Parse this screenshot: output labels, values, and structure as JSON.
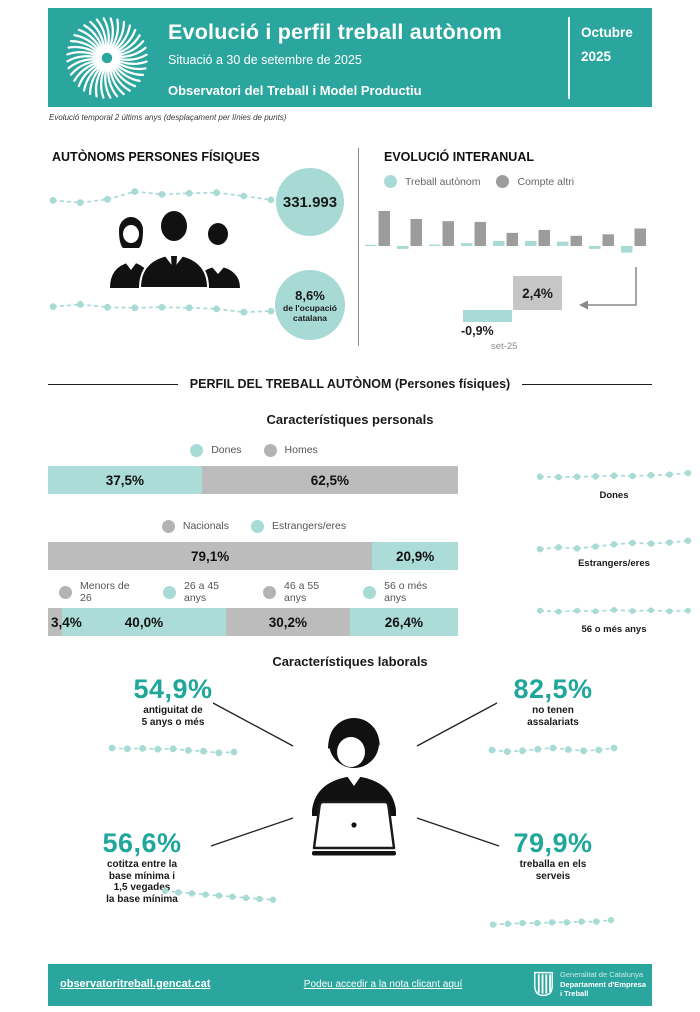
{
  "header": {
    "title": "Evolució i perfil treball autònom",
    "subtitle": "Situació a 30 de setembre de 2025",
    "org": "Observatori del Treball i Model Productiu",
    "period_month": "Octubre",
    "period_year": "2025"
  },
  "note": "Evolució temporal 2 últims anys (desplaçament per línies de punts)",
  "colors": {
    "brand_teal": "#2BA69E",
    "light_teal": "#A9DBD6",
    "stat_teal": "#1FA79B",
    "bar_gray": "#BCBCBC",
    "chart_gray": "#9C9C9C"
  },
  "autonoms": {
    "heading": "AUTÒNOMS PERSONES FÍSIQUES",
    "total": "331.993",
    "share_value": "8,6%",
    "share_line1": "de l'ocupació",
    "share_line2": "catalana"
  },
  "evolucio": {
    "heading": "EVOLUCIÓ INTERANUAL",
    "legend": [
      {
        "label": "Treball autònom",
        "color": "#A9DBD6"
      },
      {
        "label": "Compte altri",
        "color": "#9C9C9C"
      }
    ],
    "callout": {
      "gray_value": "2,4%",
      "teal_value": "-0,9%",
      "period": "set-25"
    }
  },
  "perfil": {
    "section_title": "PERFIL DEL TREBALL AUTÒNOM (Persones físiques)",
    "personals_title": "Característiques personals",
    "groups": [
      {
        "legend": [
          {
            "label": "Dones",
            "color": "#A9DBD6"
          },
          {
            "label": "Homes",
            "color": "#B3B3B3"
          }
        ],
        "segments": [
          {
            "label": "37,5%",
            "value": 37.5,
            "color": "#ABDCD8"
          },
          {
            "label": "62,5%",
            "value": 62.5,
            "color": "#BCBCBC"
          }
        ]
      },
      {
        "legend": [
          {
            "label": "Nacionals",
            "color": "#B3B3B3"
          },
          {
            "label": "Estrangers/eres",
            "color": "#A9DBD6"
          }
        ],
        "segments": [
          {
            "label": "79,1%",
            "value": 79.1,
            "color": "#BCBCBC"
          },
          {
            "label": "20,9%",
            "value": 20.9,
            "color": "#ABDCD8"
          }
        ]
      },
      {
        "legend": [
          {
            "label": "Menors de 26",
            "color": "#B3B3B3"
          },
          {
            "label": "26 a 45 anys",
            "color": "#A9DBD6"
          },
          {
            "label": "46 a 55 anys",
            "color": "#B3B3B3"
          },
          {
            "label": "56 o més anys",
            "color": "#A9DBD6"
          }
        ],
        "segments": [
          {
            "label": "3,4%",
            "value": 3.4,
            "color": "#BCBCBC"
          },
          {
            "label": "40,0%",
            "value": 40.0,
            "color": "#ABDCD8"
          },
          {
            "label": "30,2%",
            "value": 30.2,
            "color": "#BCBCBC"
          },
          {
            "label": "26,4%",
            "value": 26.4,
            "color": "#ABDCD8"
          }
        ]
      }
    ],
    "trends": [
      {
        "label": "Dones"
      },
      {
        "label": "Estrangers/eres"
      },
      {
        "label": "56 o més anys"
      }
    ],
    "laborals_title": "Característiques laborals",
    "stats": [
      {
        "value": "54,9%",
        "lines": [
          "antiguitat de",
          "5 anys o més"
        ]
      },
      {
        "value": "82,5%",
        "lines": [
          "no tenen",
          "assalariats"
        ]
      },
      {
        "value": "56,6%",
        "lines": [
          "cotitza entre la",
          "base mínima i",
          "1,5 vegades",
          "la base mínima"
        ]
      },
      {
        "value": "79,9%",
        "lines": [
          "treballa en els",
          "serveis"
        ]
      }
    ]
  },
  "footer": {
    "site": "observatoritreball.gencat.cat",
    "link": "Podeu accedir a la nota clicant aquí",
    "logo": [
      "Generalitat de Catalunya",
      "Departament d'Empresa",
      "i Treball"
    ]
  },
  "chart_data": [
    {
      "id": "evolucio_interanual",
      "type": "bar",
      "title": "EVOLUCIÓ INTERANUAL",
      "unit": "% interannual variation",
      "x_labels": [
        "",
        "",
        "",
        "",
        "",
        "",
        "",
        "",
        "set-25"
      ],
      "series": [
        {
          "name": "Treball autònom",
          "color": "#A9DBD6",
          "values": [
            0.1,
            -0.4,
            0.2,
            0.4,
            0.7,
            0.7,
            0.6,
            -0.4,
            -0.9
          ]
        },
        {
          "name": "Compte altri",
          "color": "#9C9C9C",
          "values": [
            4.8,
            3.7,
            3.4,
            3.3,
            1.8,
            2.2,
            1.4,
            1.6,
            2.4
          ]
        }
      ],
      "highlight": {
        "period": "set-25",
        "treball_autonom": -0.9,
        "compte_altri": 2.4
      },
      "legend_position": "top",
      "grid": false
    },
    {
      "id": "sexe",
      "type": "bar",
      "subtype": "stacked-horizontal",
      "categories": [
        "Dones",
        "Homes"
      ],
      "values": [
        37.5,
        62.5
      ],
      "unit": "%"
    },
    {
      "id": "nacionalitat",
      "type": "bar",
      "subtype": "stacked-horizontal",
      "categories": [
        "Nacionals",
        "Estrangers/eres"
      ],
      "values": [
        79.1,
        20.9
      ],
      "unit": "%"
    },
    {
      "id": "edat",
      "type": "bar",
      "subtype": "stacked-horizontal",
      "categories": [
        "Menors de 26",
        "26 a 45 anys",
        "46 a 55 anys",
        "56 o més anys"
      ],
      "values": [
        3.4,
        40.0,
        30.2,
        26.4
      ],
      "unit": "%"
    },
    {
      "id": "trend_sparklines",
      "type": "line",
      "y_scale": "relative (unlabeled sparklines, estimated)",
      "series": [
        {
          "name": "autonoms_total",
          "values": [
            4.0,
            3.6,
            4.2,
            5.6,
            5.1,
            5.3,
            5.4,
            4.8,
            4.1
          ]
        },
        {
          "name": "ocupacio_share",
          "values": [
            5.4,
            5.8,
            5.3,
            5.2,
            5.3,
            5.2,
            5.0,
            4.4,
            4.6
          ]
        },
        {
          "name": "dones",
          "values": [
            4.6,
            4.5,
            4.6,
            4.7,
            4.9,
            4.8,
            5.0,
            5.2,
            5.6
          ]
        },
        {
          "name": "estrangers",
          "values": [
            3.4,
            3.9,
            3.6,
            4.1,
            4.7,
            5.1,
            4.9,
            5.2,
            5.7
          ]
        },
        {
          "name": "mes_56",
          "values": [
            4.9,
            4.6,
            4.9,
            4.7,
            5.1,
            4.8,
            5.0,
            4.7,
            4.9
          ]
        },
        {
          "name": "antiguitat_5anys",
          "values": [
            5.3,
            5.1,
            5.2,
            5.0,
            5.1,
            4.7,
            4.5,
            4.1,
            4.3
          ]
        },
        {
          "name": "sense_assalariats",
          "values": [
            4.8,
            4.4,
            4.6,
            5.0,
            5.3,
            4.9,
            4.6,
            4.8,
            5.3
          ]
        },
        {
          "name": "cotitza_base_minima",
          "values": [
            6.2,
            5.8,
            5.5,
            5.2,
            4.9,
            4.6,
            4.3,
            4.0,
            3.8
          ]
        },
        {
          "name": "serveis",
          "values": [
            4.1,
            4.3,
            4.5,
            4.5,
            4.7,
            4.7,
            4.9,
            4.9,
            5.3
          ]
        }
      ]
    }
  ]
}
